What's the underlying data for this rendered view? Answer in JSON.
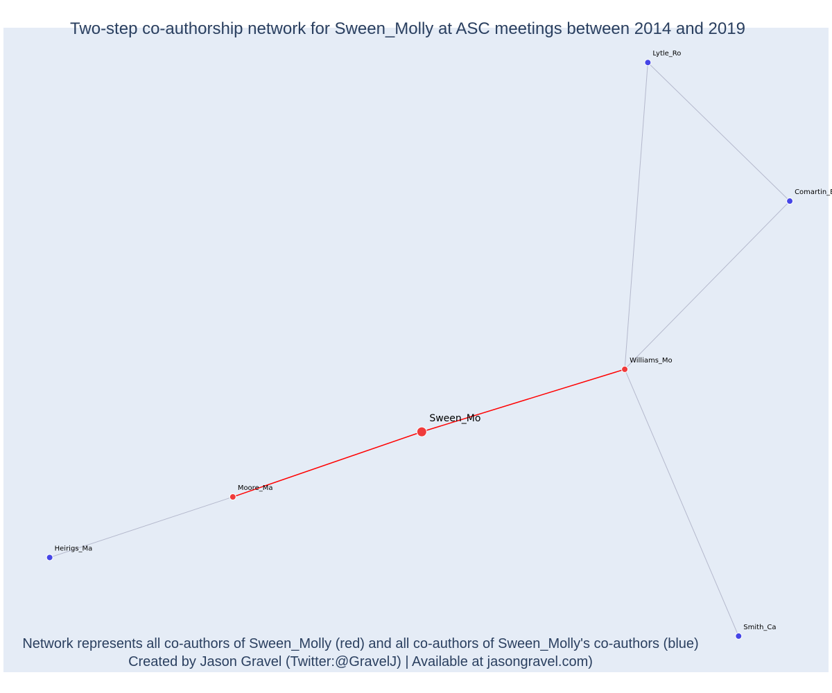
{
  "title": "Two-step co-authorship network for Sween_Molly at ASC meetings between 2014 and 2019",
  "caption": {
    "line1": "Network represents all co-authors of Sween_Molly (red) and all co-authors of Sween_Molly's co-authors (blue)",
    "line2": "Created by Jason Gravel (Twitter:@GravelJ) | Available at jasongravel.com)"
  },
  "colors": {
    "background": "#e5ecf6",
    "ego_node": "#ef3b3b",
    "first_step_node": "#ef3b3b",
    "second_step_node": "#4545e6",
    "ego_edge": "#ff0000",
    "other_edge": "#b4b8cc",
    "title_text": "#2a3f5f"
  },
  "chart_data": {
    "type": "network",
    "nodes": [
      {
        "id": "Sween_Mo",
        "label": "Sween_Mo",
        "group": "ego",
        "x": 0.507,
        "y": 0.373
      },
      {
        "id": "Williams_Mo",
        "label": "Williams_Mo",
        "group": "coauthor",
        "x": 0.753,
        "y": 0.47
      },
      {
        "id": "Moore_Ma",
        "label": "Moore_Ma",
        "group": "coauthor",
        "x": 0.278,
        "y": 0.272
      },
      {
        "id": "Lytle_Ro",
        "label": "Lytle_Ro",
        "group": "coauthor_of_coauthor",
        "x": 0.781,
        "y": 0.946
      },
      {
        "id": "Comartin_Er",
        "label": "Comartin_Er",
        "group": "coauthor_of_coauthor",
        "x": 0.953,
        "y": 0.731
      },
      {
        "id": "Heirigs_Ma",
        "label": "Heirigs_Ma",
        "group": "coauthor_of_coauthor",
        "x": 0.056,
        "y": 0.178
      },
      {
        "id": "Smith_Ca",
        "label": "Smith_Ca",
        "group": "coauthor_of_coauthor",
        "x": 0.891,
        "y": 0.056
      }
    ],
    "edges": [
      {
        "source": "Sween_Mo",
        "target": "Williams_Mo",
        "type": "ego"
      },
      {
        "source": "Sween_Mo",
        "target": "Moore_Ma",
        "type": "ego"
      },
      {
        "source": "Williams_Mo",
        "target": "Lytle_Ro",
        "type": "other"
      },
      {
        "source": "Williams_Mo",
        "target": "Comartin_Er",
        "type": "other"
      },
      {
        "source": "Lytle_Ro",
        "target": "Comartin_Er",
        "type": "other"
      },
      {
        "source": "Williams_Mo",
        "target": "Smith_Ca",
        "type": "other"
      },
      {
        "source": "Moore_Ma",
        "target": "Heirigs_Ma",
        "type": "other"
      }
    ],
    "legend": "none"
  }
}
